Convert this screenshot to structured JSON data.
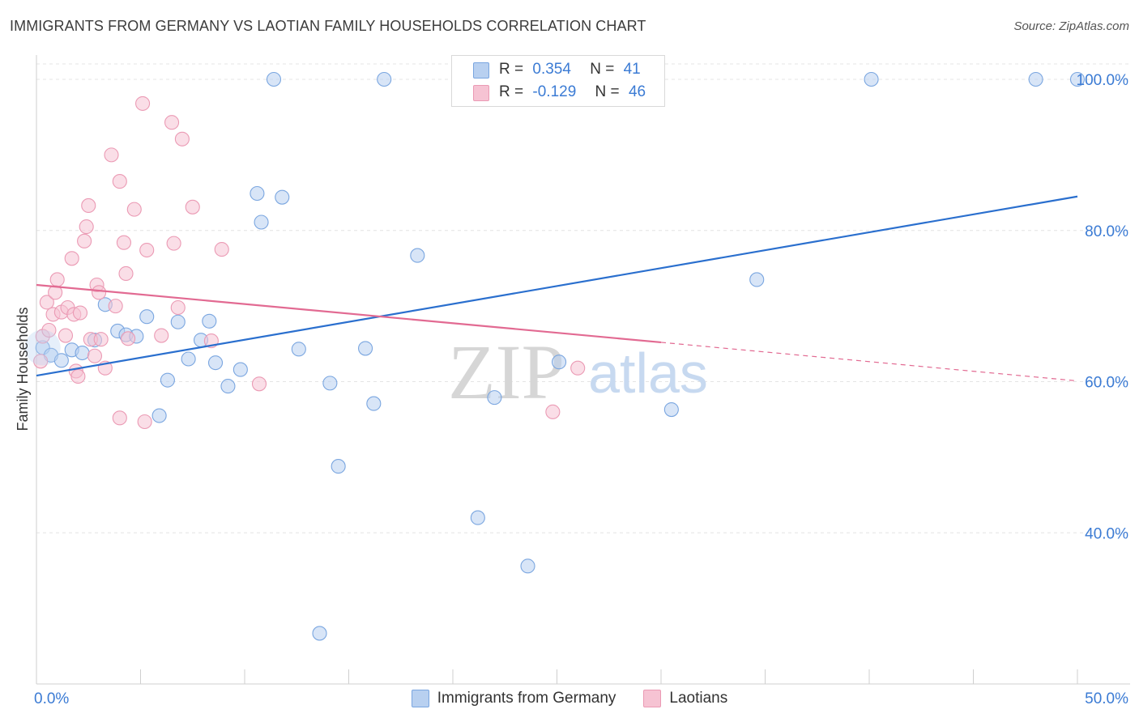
{
  "title": "IMMIGRANTS FROM GERMANY VS LAOTIAN FAMILY HOUSEHOLDS CORRELATION CHART",
  "source": "Source: ZipAtlas.com",
  "watermark": {
    "zip": "ZIP",
    "atlas": "atlas"
  },
  "colors": {
    "blue_fill": "#b8d0f0",
    "blue_stroke": "#7aa6e0",
    "blue_line": "#2a6fce",
    "pink_fill": "#f6c3d3",
    "pink_stroke": "#eb9ab4",
    "pink_line": "#e26a92",
    "tick_label": "#3b7bd4",
    "grid": "#e4e4e4"
  },
  "stats": [
    {
      "r_label": "R =",
      "r_value": "0.354",
      "n_label": "N =",
      "n_value": "41"
    },
    {
      "r_label": "R =",
      "r_value": "-0.129",
      "n_label": "N =",
      "n_value": "46"
    }
  ],
  "chart_data": {
    "type": "scatter",
    "title": "IMMIGRANTS FROM GERMANY VS LAOTIAN FAMILY HOUSEHOLDS CORRELATION CHART",
    "xlabel": "",
    "ylabel": "Family Households",
    "xlim": [
      0,
      50
    ],
    "ylim": [
      20,
      103
    ],
    "x_tick_labels": [
      "0.0%",
      "50.0%"
    ],
    "y_ticks": [
      40,
      60,
      80,
      100
    ],
    "y_tick_labels": [
      "40.0%",
      "60.0%",
      "80.0%",
      "100.0%"
    ],
    "legend_position": "bottom",
    "series": [
      {
        "name": "Immigrants from Germany",
        "color": "blue",
        "points": [
          [
            0.3,
            64.5
          ],
          [
            0.7,
            63.5
          ],
          [
            1.2,
            62.8
          ],
          [
            1.7,
            64.2
          ],
          [
            2.2,
            63.8
          ],
          [
            2.8,
            65.5
          ],
          [
            3.3,
            70.2
          ],
          [
            3.9,
            66.7
          ],
          [
            4.3,
            66.2
          ],
          [
            4.8,
            66.0
          ],
          [
            5.3,
            68.6
          ],
          [
            5.9,
            55.5
          ],
          [
            6.3,
            60.2
          ],
          [
            6.8,
            67.9
          ],
          [
            7.3,
            63.0
          ],
          [
            7.9,
            65.5
          ],
          [
            8.3,
            68.0
          ],
          [
            8.6,
            62.5
          ],
          [
            9.2,
            59.4
          ],
          [
            9.8,
            61.6
          ],
          [
            10.6,
            84.9
          ],
          [
            10.8,
            81.1
          ],
          [
            11.4,
            100.0
          ],
          [
            11.8,
            84.4
          ],
          [
            12.6,
            64.3
          ],
          [
            13.6,
            26.7
          ],
          [
            14.1,
            59.8
          ],
          [
            14.5,
            48.8
          ],
          [
            15.8,
            64.4
          ],
          [
            16.2,
            57.1
          ],
          [
            16.7,
            100.0
          ],
          [
            18.3,
            76.7
          ],
          [
            21.2,
            42.0
          ],
          [
            22.0,
            57.9
          ],
          [
            23.6,
            35.6
          ],
          [
            25.1,
            62.6
          ],
          [
            30.5,
            56.3
          ],
          [
            34.6,
            73.5
          ],
          [
            40.1,
            100.0
          ],
          [
            48.0,
            100.0
          ],
          [
            50.0,
            100.0
          ]
        ],
        "trend": {
          "x": [
            0,
            50
          ],
          "y": [
            60.8,
            84.5
          ]
        }
      },
      {
        "name": "Laotians",
        "color": "pink",
        "points": [
          [
            0.2,
            62.7
          ],
          [
            0.3,
            66.0
          ],
          [
            0.5,
            70.5
          ],
          [
            0.6,
            66.8
          ],
          [
            0.8,
            68.9
          ],
          [
            0.9,
            71.8
          ],
          [
            1.0,
            73.5
          ],
          [
            1.2,
            69.2
          ],
          [
            1.4,
            66.1
          ],
          [
            1.5,
            69.8
          ],
          [
            1.7,
            76.3
          ],
          [
            1.8,
            68.9
          ],
          [
            1.9,
            61.4
          ],
          [
            2.0,
            60.7
          ],
          [
            2.1,
            69.1
          ],
          [
            2.3,
            78.6
          ],
          [
            2.4,
            80.5
          ],
          [
            2.5,
            83.3
          ],
          [
            2.6,
            65.6
          ],
          [
            2.8,
            63.4
          ],
          [
            2.9,
            72.8
          ],
          [
            3.0,
            71.8
          ],
          [
            3.1,
            65.6
          ],
          [
            3.3,
            61.8
          ],
          [
            3.6,
            90.0
          ],
          [
            3.8,
            70.0
          ],
          [
            4.0,
            86.5
          ],
          [
            4.0,
            55.2
          ],
          [
            4.2,
            78.4
          ],
          [
            4.3,
            74.3
          ],
          [
            4.4,
            65.7
          ],
          [
            4.7,
            82.8
          ],
          [
            5.1,
            96.8
          ],
          [
            5.2,
            54.7
          ],
          [
            5.3,
            77.4
          ],
          [
            6.0,
            66.1
          ],
          [
            6.5,
            94.3
          ],
          [
            6.6,
            78.3
          ],
          [
            6.8,
            69.8
          ],
          [
            7.0,
            92.1
          ],
          [
            7.5,
            83.1
          ],
          [
            8.4,
            65.4
          ],
          [
            8.9,
            77.5
          ],
          [
            10.7,
            59.7
          ],
          [
            24.8,
            56.0
          ],
          [
            26.0,
            61.8
          ]
        ],
        "trend": {
          "x": [
            0,
            30
          ],
          "y": [
            72.8,
            65.2
          ]
        },
        "trend_dashed": {
          "x": [
            30,
            50
          ],
          "y": [
            65.2,
            60.1
          ]
        }
      }
    ]
  },
  "legend": [
    {
      "label": "Immigrants from Germany"
    },
    {
      "label": "Laotians"
    }
  ]
}
